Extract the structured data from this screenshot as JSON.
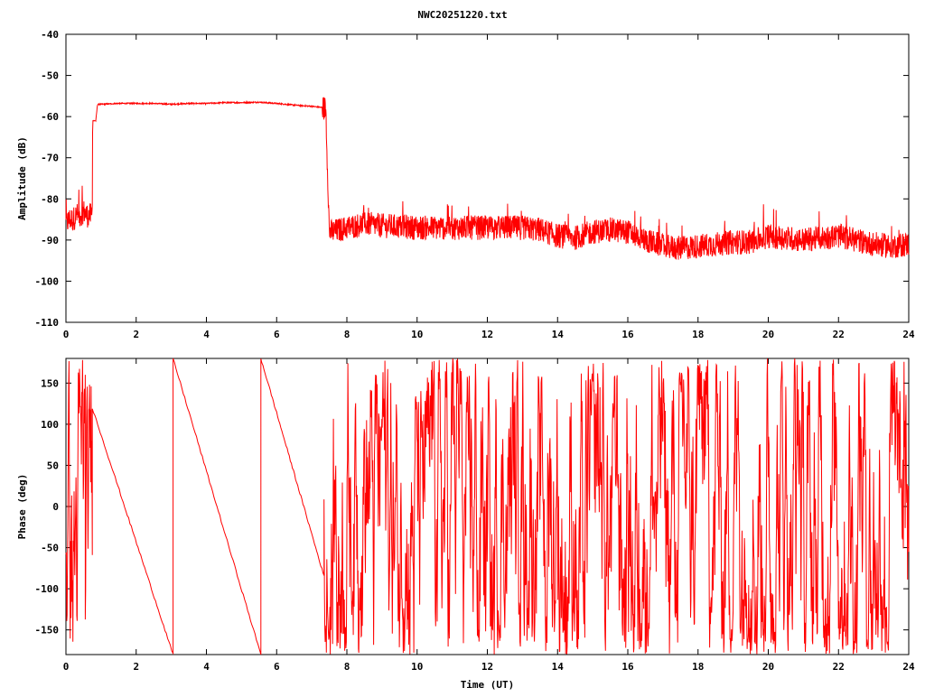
{
  "title": "NWC20251220.txt",
  "colors": {
    "series": "#ff0000",
    "axis": "#000000",
    "background": "#ffffff"
  },
  "chart_data": [
    {
      "type": "line",
      "title": "NWC20251220.txt",
      "xlabel": "",
      "ylabel": "Amplitude (dB)",
      "xlim": [
        0,
        24
      ],
      "ylim": [
        -110,
        -40
      ],
      "xticks": [
        "0",
        "2",
        "4",
        "6",
        "8",
        "10",
        "12",
        "14",
        "16",
        "18",
        "20",
        "22",
        "24"
      ],
      "yticks": [
        "-40",
        "-50",
        "-60",
        "-70",
        "-80",
        "-90",
        "-100",
        "-110"
      ],
      "grid": false,
      "series": [
        {
          "color": "#ff0000",
          "x": [
            0.0,
            0.1,
            0.2,
            0.3,
            0.4,
            0.5,
            0.6,
            0.7,
            0.75,
            0.76,
            0.8,
            0.85,
            0.9,
            1.0,
            1.5,
            2.0,
            2.5,
            3.0,
            3.5,
            4.0,
            4.5,
            5.0,
            5.5,
            6.0,
            6.5,
            7.0,
            7.3,
            7.4,
            7.5,
            7.6,
            8.0,
            8.5,
            9.0,
            10.0,
            11.0,
            12.0,
            13.0,
            13.5,
            14.0,
            14.5,
            15.0,
            15.5,
            16.0,
            16.5,
            17.0,
            17.5,
            18.0,
            18.5,
            19.0,
            19.5,
            20.0,
            20.5,
            21.0,
            21.5,
            22.0,
            22.5,
            23.0,
            23.5,
            24.0
          ],
          "values": [
            -86,
            -85,
            -85,
            -84,
            -84,
            -83,
            -84,
            -84,
            -84,
            -61,
            -61,
            -61,
            -57,
            -57,
            -56.8,
            -56.8,
            -56.8,
            -57,
            -56.8,
            -56.8,
            -56.6,
            -56.6,
            -56.5,
            -56.8,
            -57.2,
            -57.5,
            -57.8,
            -58,
            -88,
            -88,
            -87,
            -86,
            -86.5,
            -87,
            -87,
            -87,
            -87,
            -87.5,
            -89,
            -89.5,
            -88,
            -87.5,
            -88,
            -90,
            -91.5,
            -92,
            -91.5,
            -91,
            -90.5,
            -90.5,
            -89,
            -89.5,
            -90,
            -89.5,
            -89,
            -90,
            -91,
            -91.5,
            -91
          ],
          "noise_halfwidth_db": 3
        }
      ]
    },
    {
      "type": "line",
      "xlabel": "Time (UT)",
      "ylabel": "Phase (deg)",
      "xlim": [
        0,
        24
      ],
      "ylim": [
        -180,
        180
      ],
      "xticks": [
        "0",
        "2",
        "4",
        "6",
        "8",
        "10",
        "12",
        "14",
        "16",
        "18",
        "20",
        "22",
        "24"
      ],
      "yticks": [
        "150",
        "100",
        "50",
        "0",
        "-50",
        "-100",
        "-150"
      ],
      "grid": false,
      "series": [
        {
          "color": "#ff0000",
          "segments": [
            {
              "x": [
                0.0,
                0.55
              ],
              "values": [
                -50,
                90
              ],
              "style": "noisy"
            },
            {
              "x": [
                0.55,
                0.75
              ],
              "values": [
                180,
                -180
              ],
              "style": "noisy"
            },
            {
              "x": [
                0.75,
                3.05
              ],
              "values": [
                120,
                -180
              ],
              "style": "ramp"
            },
            {
              "x": [
                3.05,
                5.55
              ],
              "values": [
                180,
                -180
              ],
              "style": "ramp"
            },
            {
              "x": [
                5.55,
                7.35
              ],
              "values": [
                180,
                -85
              ],
              "style": "ramp"
            },
            {
              "x": [
                7.35,
                24.0
              ],
              "values": [
                -180,
                180
              ],
              "style": "noisy"
            }
          ]
        }
      ]
    }
  ]
}
